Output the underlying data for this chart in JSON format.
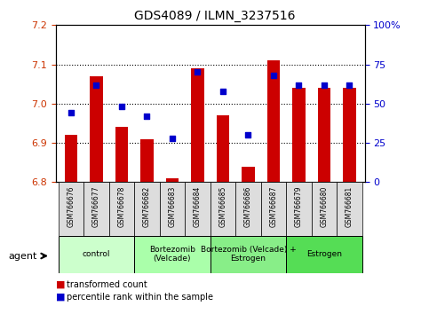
{
  "title": "GDS4089 / ILMN_3237516",
  "samples": [
    "GSM766676",
    "GSM766677",
    "GSM766678",
    "GSM766682",
    "GSM766683",
    "GSM766684",
    "GSM766685",
    "GSM766686",
    "GSM766687",
    "GSM766679",
    "GSM766680",
    "GSM766681"
  ],
  "bar_values": [
    6.92,
    7.07,
    6.94,
    6.91,
    6.81,
    7.09,
    6.97,
    6.84,
    7.11,
    7.04,
    7.04,
    7.04
  ],
  "percentile_values": [
    44,
    62,
    48,
    42,
    28,
    70,
    58,
    30,
    68,
    62,
    62,
    62
  ],
  "bar_bottom": 6.8,
  "ylim_left": [
    6.8,
    7.2
  ],
  "ylim_right": [
    0,
    100
  ],
  "yticks_left": [
    6.8,
    6.9,
    7.0,
    7.1,
    7.2
  ],
  "yticks_right": [
    0,
    25,
    50,
    75,
    100
  ],
  "ytick_labels_right": [
    "0",
    "25",
    "50",
    "75",
    "100%"
  ],
  "bar_color": "#cc0000",
  "dot_color": "#0000cc",
  "groups": [
    {
      "label": "control",
      "start": 0,
      "end": 3,
      "color": "#ccffcc"
    },
    {
      "label": "Bortezomib\n(Velcade)",
      "start": 3,
      "end": 6,
      "color": "#aaffaa"
    },
    {
      "label": "Bortezomib (Velcade) +\nEstrogen",
      "start": 6,
      "end": 9,
      "color": "#88ee88"
    },
    {
      "label": "Estrogen",
      "start": 9,
      "end": 12,
      "color": "#55dd55"
    }
  ],
  "legend_bar_label": "transformed count",
  "legend_dot_label": "percentile rank within the sample",
  "agent_label": "agent",
  "grid_yvals": [
    6.9,
    7.0,
    7.1
  ]
}
